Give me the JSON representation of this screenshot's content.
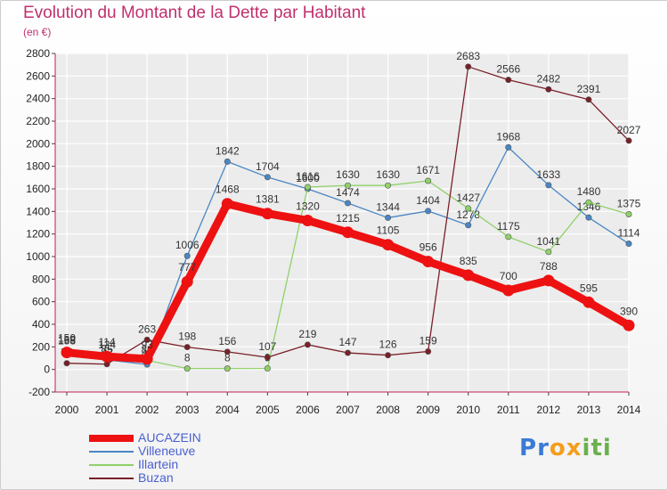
{
  "header": {
    "title": "Evolution du Montant de la Dette par Habitant",
    "subtitle": "(en €)"
  },
  "logo": {
    "text": "Proxiti",
    "letters": [
      "P",
      "r",
      "o",
      "x",
      "i",
      "t",
      "i"
    ],
    "colors": [
      "#3a7bd5",
      "#3a7bd5",
      "#f59d1e",
      "#f59d1e",
      "#6ab04c",
      "#6ab04c",
      "#6ab04c"
    ]
  },
  "chart_data": {
    "type": "line",
    "title": "Evolution du Montant de la Dette par Habitant",
    "ylabel": "(en €)",
    "xlabel": "",
    "categories": [
      "2000",
      "2001",
      "2002",
      "2003",
      "2004",
      "2005",
      "2006",
      "2007",
      "2008",
      "2009",
      "2010",
      "2011",
      "2012",
      "2013",
      "2014"
    ],
    "ylim": [
      -200,
      2800
    ],
    "yticks": [
      -200,
      0,
      200,
      400,
      600,
      800,
      1000,
      1200,
      1400,
      1600,
      1800,
      2000,
      2200,
      2400,
      2600,
      2800
    ],
    "grid": true,
    "legend": "bottom-left",
    "series": [
      {
        "name": "Villeneuve",
        "color": "#4a86c5",
        "values": [
          158,
          85,
          44,
          1006,
          1842,
          1704,
          1600,
          1474,
          1344,
          1404,
          1278,
          1968,
          1633,
          1346,
          1114
        ]
      },
      {
        "name": "Illartein",
        "color": "#8fd16a",
        "values": [
          168,
          124,
          80,
          8,
          8,
          9,
          1616,
          1630,
          1630,
          1671,
          1427,
          1175,
          1041,
          1480,
          1375
        ]
      },
      {
        "name": "Buzan",
        "color": "#7a1f28",
        "values": [
          55,
          47,
          263,
          198,
          156,
          107,
          219,
          147,
          126,
          159,
          2683,
          2566,
          2482,
          2391,
          2027
        ]
      },
      {
        "name": "AUCAZEIN",
        "color": "#ee1111",
        "values": [
          150,
          114,
          93,
          777,
          1468,
          1381,
          1320,
          1215,
          1105,
          956,
          835,
          700,
          788,
          595,
          390
        ]
      }
    ]
  }
}
